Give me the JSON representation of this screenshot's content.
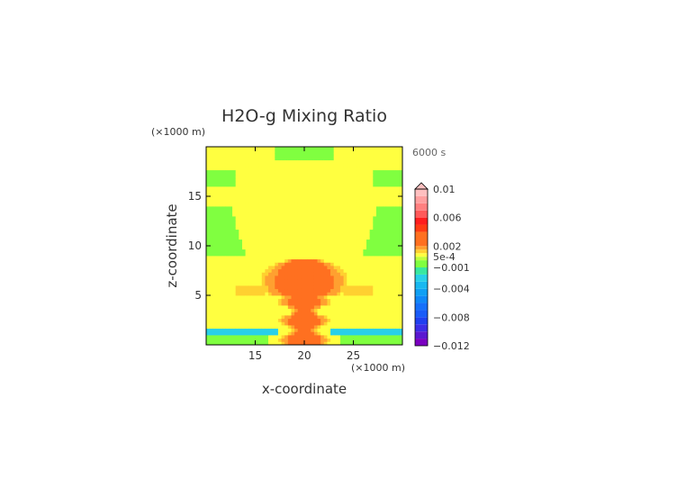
{
  "chart_data": {
    "type": "heatmap",
    "title": "H2O-g Mixing Ratio",
    "time_label": "6000 s",
    "xlabel": "x-coordinate",
    "ylabel": "z-coordinate",
    "x_unit": "(×1000 m)",
    "y_unit": "(×1000 m)",
    "xlim": [
      10,
      30
    ],
    "ylim": [
      0,
      20
    ],
    "x_ticks": [
      15,
      20,
      25
    ],
    "y_ticks": [
      5,
      10,
      15
    ],
    "x_tick_labels": [
      "15",
      "20",
      "25"
    ],
    "y_tick_labels": [
      "5",
      "10",
      "15"
    ],
    "colorbar": {
      "range": [
        -0.012,
        0.01
      ],
      "tick_values": [
        0.01,
        0.006,
        0.002,
        0.0005,
        -0.001,
        -0.004,
        -0.008,
        -0.012
      ],
      "tick_labels": [
        "0.01",
        "0.006",
        "0.002",
        "5e-4",
        "−0.001",
        "−0.004",
        "−0.008",
        "−0.012"
      ],
      "levels": [
        {
          "min": -0.012,
          "max": -0.011,
          "color": "#7a00c0"
        },
        {
          "min": -0.011,
          "max": -0.01,
          "color": "#5a18d0"
        },
        {
          "min": -0.01,
          "max": -0.009,
          "color": "#3c2ee6"
        },
        {
          "min": -0.009,
          "max": -0.008,
          "color": "#2040f0"
        },
        {
          "min": -0.008,
          "max": -0.007,
          "color": "#1a5cf8"
        },
        {
          "min": -0.007,
          "max": -0.006,
          "color": "#1670fa"
        },
        {
          "min": -0.006,
          "max": -0.005,
          "color": "#1088f8"
        },
        {
          "min": -0.005,
          "max": -0.004,
          "color": "#10a0f4"
        },
        {
          "min": -0.004,
          "max": -0.003,
          "color": "#18b8f0"
        },
        {
          "min": -0.003,
          "max": -0.002,
          "color": "#28d0e8"
        },
        {
          "min": -0.002,
          "max": -0.001,
          "color": "#38e8a0"
        },
        {
          "min": -0.001,
          "max": 0.0,
          "color": "#80ff40"
        },
        {
          "min": 0.0,
          "max": 0.0005,
          "color": "#c0ff3c"
        },
        {
          "min": 0.0005,
          "max": 0.001,
          "color": "#ffff40"
        },
        {
          "min": 0.001,
          "max": 0.0015,
          "color": "#ffd030"
        },
        {
          "min": 0.0015,
          "max": 0.002,
          "color": "#ffa030"
        },
        {
          "min": 0.002,
          "max": 0.004,
          "color": "#ff7020"
        },
        {
          "min": 0.004,
          "max": 0.005,
          "color": "#ff3c14"
        },
        {
          "min": 0.005,
          "max": 0.006,
          "color": "#ff1e1e"
        },
        {
          "min": 0.006,
          "max": 0.007,
          "color": "#ff5a5a"
        },
        {
          "min": 0.007,
          "max": 0.008,
          "color": "#ff8080"
        },
        {
          "min": 0.008,
          "max": 0.009,
          "color": "#ffa0a0"
        },
        {
          "min": 0.009,
          "max": 0.01,
          "color": "#ffc0c0"
        }
      ]
    },
    "field_description_values": {
      "background": 0.0007,
      "negative_bands": [
        {
          "z_range": [
            16,
            17.5
          ],
          "value": -0.0005
        },
        {
          "z_range": [
            9,
            14
          ],
          "value": -0.0005
        },
        {
          "z_range": [
            1,
            1.8
          ],
          "value": -0.0025
        }
      ],
      "plume_peak": 0.0035,
      "plume_center_x": 20
    }
  }
}
